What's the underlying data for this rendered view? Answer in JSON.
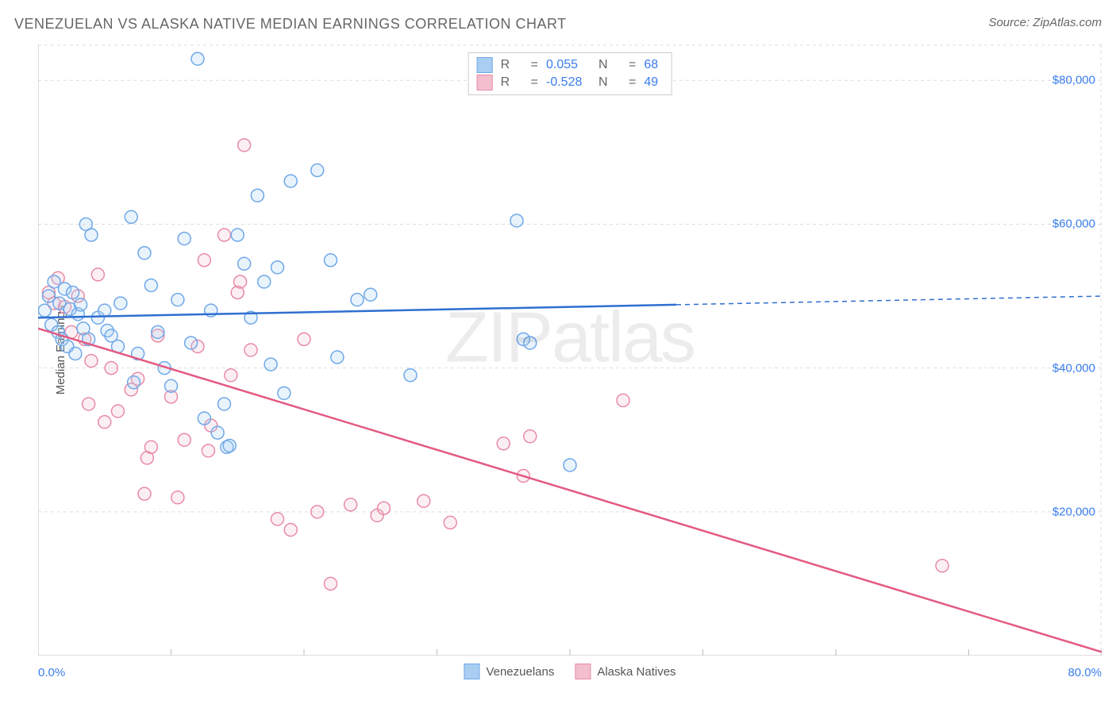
{
  "header": {
    "title": "VENEZUELAN VS ALASKA NATIVE MEDIAN EARNINGS CORRELATION CHART",
    "source": "Source: ZipAtlas.com"
  },
  "chart": {
    "type": "scatter",
    "ylabel": "Median Earnings",
    "xlim": [
      0,
      80
    ],
    "ylim": [
      0,
      85000
    ],
    "xaxis_left_label": "0.0%",
    "xaxis_right_label": "80.0%",
    "ytick_values": [
      20000,
      40000,
      60000,
      80000
    ],
    "ytick_labels": [
      "$20,000",
      "$40,000",
      "$60,000",
      "$80,000"
    ],
    "xtick_positions": [
      0,
      10,
      20,
      30,
      40,
      50,
      60,
      70,
      80
    ],
    "grid_color": "#dddddd",
    "grid_dash": "4,4",
    "axis_color": "#bbbbbb",
    "background_color": "#ffffff",
    "watermark": "ZIPatlas",
    "marker_radius": 8,
    "marker_stroke_width": 1.5,
    "marker_fill_opacity": 0.25,
    "series": {
      "venezuelans": {
        "label": "Venezuelans",
        "color_stroke": "#6fa8e8",
        "color_fill": "#a9cef2",
        "correlation_r": "0.055",
        "correlation_n": "68",
        "trend": {
          "x1": 0,
          "y1": 47000,
          "x2": 80,
          "y2": 50000,
          "solid_until_x": 48
        },
        "points": [
          [
            0.5,
            48000
          ],
          [
            0.8,
            50000
          ],
          [
            1.0,
            46000
          ],
          [
            1.2,
            52000
          ],
          [
            1.5,
            45000
          ],
          [
            1.6,
            49000
          ],
          [
            1.8,
            44000
          ],
          [
            2.0,
            51000
          ],
          [
            2.2,
            43000
          ],
          [
            2.4,
            48200
          ],
          [
            2.6,
            50500
          ],
          [
            2.8,
            42000
          ],
          [
            3.0,
            47500
          ],
          [
            3.2,
            48800
          ],
          [
            3.4,
            45500
          ],
          [
            3.6,
            60000
          ],
          [
            3.8,
            44000
          ],
          [
            4.0,
            58500
          ],
          [
            4.5,
            47000
          ],
          [
            5.0,
            48000
          ],
          [
            5.2,
            45200
          ],
          [
            5.5,
            44500
          ],
          [
            6.0,
            43000
          ],
          [
            6.2,
            49000
          ],
          [
            7.0,
            61000
          ],
          [
            7.2,
            38000
          ],
          [
            7.5,
            42000
          ],
          [
            8.0,
            56000
          ],
          [
            8.5,
            51500
          ],
          [
            9.0,
            45000
          ],
          [
            9.5,
            40000
          ],
          [
            10.0,
            37500
          ],
          [
            10.5,
            49500
          ],
          [
            11.0,
            58000
          ],
          [
            11.5,
            43500
          ],
          [
            12.0,
            83000
          ],
          [
            12.5,
            33000
          ],
          [
            13.0,
            48000
          ],
          [
            13.5,
            31000
          ],
          [
            14.0,
            35000
          ],
          [
            14.2,
            29000
          ],
          [
            14.4,
            29200
          ],
          [
            15.0,
            58500
          ],
          [
            15.5,
            54500
          ],
          [
            16.0,
            47000
          ],
          [
            16.5,
            64000
          ],
          [
            17.0,
            52000
          ],
          [
            17.5,
            40500
          ],
          [
            18.0,
            54000
          ],
          [
            18.5,
            36500
          ],
          [
            19.0,
            66000
          ],
          [
            21.0,
            67500
          ],
          [
            22.0,
            55000
          ],
          [
            22.5,
            41500
          ],
          [
            24.0,
            49500
          ],
          [
            25.0,
            50200
          ],
          [
            28.0,
            39000
          ],
          [
            36.0,
            60500
          ],
          [
            36.5,
            44000
          ],
          [
            37.0,
            43500
          ],
          [
            40.0,
            26500
          ]
        ]
      },
      "alaska_natives": {
        "label": "Alaska Natives",
        "color_stroke": "#e88ba5",
        "color_fill": "#f3bfcf",
        "correlation_r": "-0.528",
        "correlation_n": "49",
        "trend": {
          "x1": 0,
          "y1": 45500,
          "x2": 80,
          "y2": 500,
          "solid_until_x": 80
        },
        "points": [
          [
            0.8,
            50500
          ],
          [
            1.2,
            49000
          ],
          [
            1.5,
            52500
          ],
          [
            2.0,
            48500
          ],
          [
            2.5,
            45000
          ],
          [
            3.0,
            50000
          ],
          [
            3.5,
            44000
          ],
          [
            3.8,
            35000
          ],
          [
            4.0,
            41000
          ],
          [
            4.5,
            53000
          ],
          [
            5.0,
            32500
          ],
          [
            5.5,
            40000
          ],
          [
            6.0,
            34000
          ],
          [
            7.0,
            37000
          ],
          [
            7.5,
            38500
          ],
          [
            8.0,
            22500
          ],
          [
            8.2,
            27500
          ],
          [
            8.5,
            29000
          ],
          [
            9.0,
            44500
          ],
          [
            10.0,
            36000
          ],
          [
            10.5,
            22000
          ],
          [
            11.0,
            30000
          ],
          [
            12.0,
            43000
          ],
          [
            12.5,
            55000
          ],
          [
            12.8,
            28500
          ],
          [
            13.0,
            32000
          ],
          [
            14.0,
            58500
          ],
          [
            14.5,
            39000
          ],
          [
            15.0,
            50500
          ],
          [
            15.2,
            52000
          ],
          [
            15.5,
            71000
          ],
          [
            16.0,
            42500
          ],
          [
            18.0,
            19000
          ],
          [
            19.0,
            17500
          ],
          [
            20.0,
            44000
          ],
          [
            21.0,
            20000
          ],
          [
            22.0,
            10000
          ],
          [
            23.5,
            21000
          ],
          [
            25.5,
            19500
          ],
          [
            26.0,
            20500
          ],
          [
            29.0,
            21500
          ],
          [
            31.0,
            18500
          ],
          [
            35.0,
            29500
          ],
          [
            36.5,
            25000
          ],
          [
            37.0,
            30500
          ],
          [
            44.0,
            35500
          ],
          [
            68.0,
            12500
          ]
        ]
      }
    },
    "correlation_box": {
      "r_label": "R",
      "n_label": "N",
      "equals": "="
    },
    "bottom_legend": {
      "item1_key": "venezuelans",
      "item2_key": "alaska_natives"
    }
  }
}
